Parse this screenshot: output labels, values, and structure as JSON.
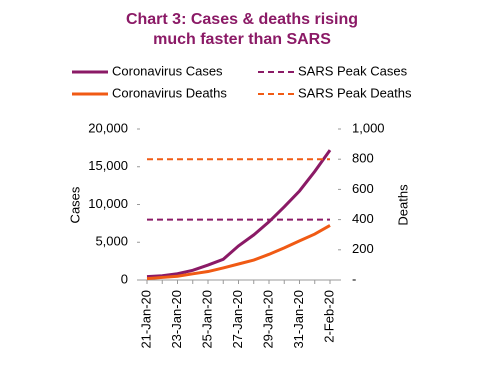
{
  "chart_data": {
    "type": "line",
    "title": [
      "Chart 3: Cases & deaths rising",
      "much faster than SARS"
    ],
    "y_label": "Cases",
    "y2_label": "Deaths",
    "categories": [
      "21-Jan-20",
      null,
      "23-Jan-20",
      null,
      "25-Jan-20",
      null,
      "27-Jan-20",
      null,
      "29-Jan-20",
      null,
      "31-Jan-20",
      null,
      "2-Feb-20"
    ],
    "ylim": [
      0,
      20000
    ],
    "yticks": [
      0,
      {
        "value": 5000,
        "label": "5,000"
      },
      {
        "value": 10000,
        "label": "10,000"
      },
      {
        "value": 15000,
        "label": "15,000"
      },
      {
        "value": 20000,
        "label": "20,000"
      }
    ],
    "y2lim": [
      0,
      1000
    ],
    "y2ticks": [
      {
        "value": 0,
        "label": "-"
      },
      200,
      400,
      600,
      800,
      {
        "value": 1000,
        "label": "1,000"
      }
    ],
    "series": [
      {
        "name": "Coronavirus Cases",
        "color": "#8b1a66",
        "style": "solid",
        "values": [
          440,
          571,
          830,
          1287,
          1975,
          2744,
          4515,
          5974,
          7711,
          9692,
          11791,
          14380,
          17205
        ]
      },
      {
        "name": "Coronavirus Deaths",
        "color": "#f05a14",
        "style": "solid",
        "axis": "y2",
        "values": [
          9,
          17,
          25,
          41,
          56,
          80,
          106,
          132,
          170,
          213,
          259,
          304,
          361
        ]
      },
      {
        "name": "SARS Peak Cases",
        "color": "#8b1a66",
        "style": "dashed",
        "values": [
          8000,
          8000,
          8000,
          8000,
          8000,
          8000,
          8000,
          8000,
          8000,
          8000,
          8000,
          8000,
          8000
        ]
      },
      {
        "name": "SARS Peak Deaths",
        "color": "#f05a14",
        "style": "dashed",
        "axis": "y2",
        "values": [
          800,
          800,
          800,
          800,
          800,
          800,
          800,
          800,
          800,
          800,
          800,
          800,
          800
        ]
      }
    ]
  }
}
